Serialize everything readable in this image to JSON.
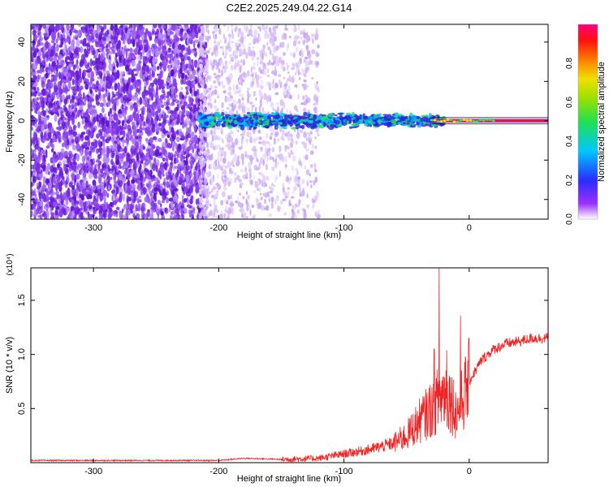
{
  "title": "C2E2.2025.249.04.22.G14",
  "colors": {
    "snr_line": "#ee2222",
    "background": "#ffffff",
    "axes": "#000000",
    "sparse_scatter": "#7a2fe0",
    "light_scatter": "#d2b8f5"
  },
  "chart_data": [
    {
      "type": "heatmap",
      "xlabel": "Height of straight line (km)",
      "ylabel": "Frequency (Hz)",
      "xlim": [
        -350,
        63
      ],
      "ylim": [
        -50,
        49
      ],
      "xticks": [
        -300,
        -200,
        -100,
        0
      ],
      "yticks": [
        -40,
        -20,
        0,
        20,
        40
      ],
      "colorbar": {
        "label": "Normalized spectral amplitude",
        "range": [
          0.0,
          1.0
        ],
        "ticks": [
          "0.0",
          "0.2",
          "0.4",
          "0.6",
          "0.8"
        ],
        "colormap": "rainbow (purple-blue-cyan-green-yellow-red-magenta)"
      },
      "features": {
        "broadband_noise_x_range": [
          -350,
          -120
        ],
        "signal_band_x_range": [
          -215,
          63
        ],
        "signal_center_frequency": 0,
        "signal_band_halfwidth_hz": [
          5,
          1
        ]
      }
    },
    {
      "type": "line",
      "xlabel": "Height of straight line (km)",
      "ylabel": "SNR (10 * v/v)",
      "yscale_label": "(x10⁴)",
      "xlim": [
        -350,
        63
      ],
      "ylim": [
        0,
        1.8
      ],
      "xticks": [
        -300,
        -200,
        -100,
        0
      ],
      "yticks": [
        0.5,
        1.0,
        1.5
      ],
      "series": [
        {
          "x": [
            -350,
            -300,
            -250,
            -200,
            -180,
            -150,
            -120,
            -100,
            -80,
            -60,
            -50,
            -40,
            -30,
            -25,
            -20,
            -15,
            -10,
            -5,
            0,
            10,
            20,
            30,
            40,
            50,
            63
          ],
          "y": [
            0.02,
            0.02,
            0.02,
            0.02,
            0.04,
            0.03,
            0.04,
            0.08,
            0.12,
            0.18,
            0.25,
            0.38,
            0.5,
            0.58,
            0.65,
            0.6,
            0.45,
            0.6,
            0.75,
            0.95,
            1.05,
            1.1,
            1.12,
            1.15,
            1.15
          ],
          "peaks": [
            {
              "x": -24,
              "y": 1.8
            },
            {
              "x": -7,
              "y": 1.36
            },
            {
              "x": -28,
              "y": 1.05
            },
            {
              "x": -18,
              "y": 1.04
            }
          ]
        }
      ]
    }
  ]
}
